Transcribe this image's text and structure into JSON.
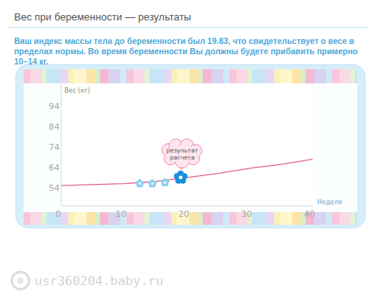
{
  "chart_data": {
    "type": "line",
    "title": "Вес при беременности — результаты",
    "subtitle": "Ваш индекс массы тела до беременности был 19.83, что свидетельствует о весе в пределах нормы. Во время беременности Вы должны будете прибавить примерно 10–14 кг.",
    "y_label": "Вес (кг)",
    "x_label": "Неделя",
    "xlim": [
      0,
      40
    ],
    "xticks": [
      0,
      10,
      20,
      30,
      40
    ],
    "ylim": [
      45,
      105
    ],
    "yticks": [
      54,
      64,
      74,
      84,
      94
    ],
    "grid": false,
    "series": [
      {
        "type": "line",
        "line_style": "solid",
        "color": "#e0609a",
        "x": [
          0,
          5,
          10,
          15,
          20,
          25,
          30,
          35,
          40
        ],
        "values": [
          55,
          55.5,
          56,
          57,
          59,
          61,
          63.5,
          65.5,
          68
        ]
      },
      {
        "type": "scatter",
        "marker": "flower",
        "colors": [
          "#8fd0ef",
          "#8fd0ef",
          "#8fd0ef",
          "#1a8fd8"
        ],
        "x": [
          12.5,
          14.5,
          16.5,
          19
        ],
        "values": [
          56,
          56,
          56.5,
          59
        ]
      }
    ],
    "annotations": [
      {
        "text": "результат расчета",
        "x": 19,
        "y": 59
      }
    ]
  },
  "watermark": "usr360204.baby.ru"
}
